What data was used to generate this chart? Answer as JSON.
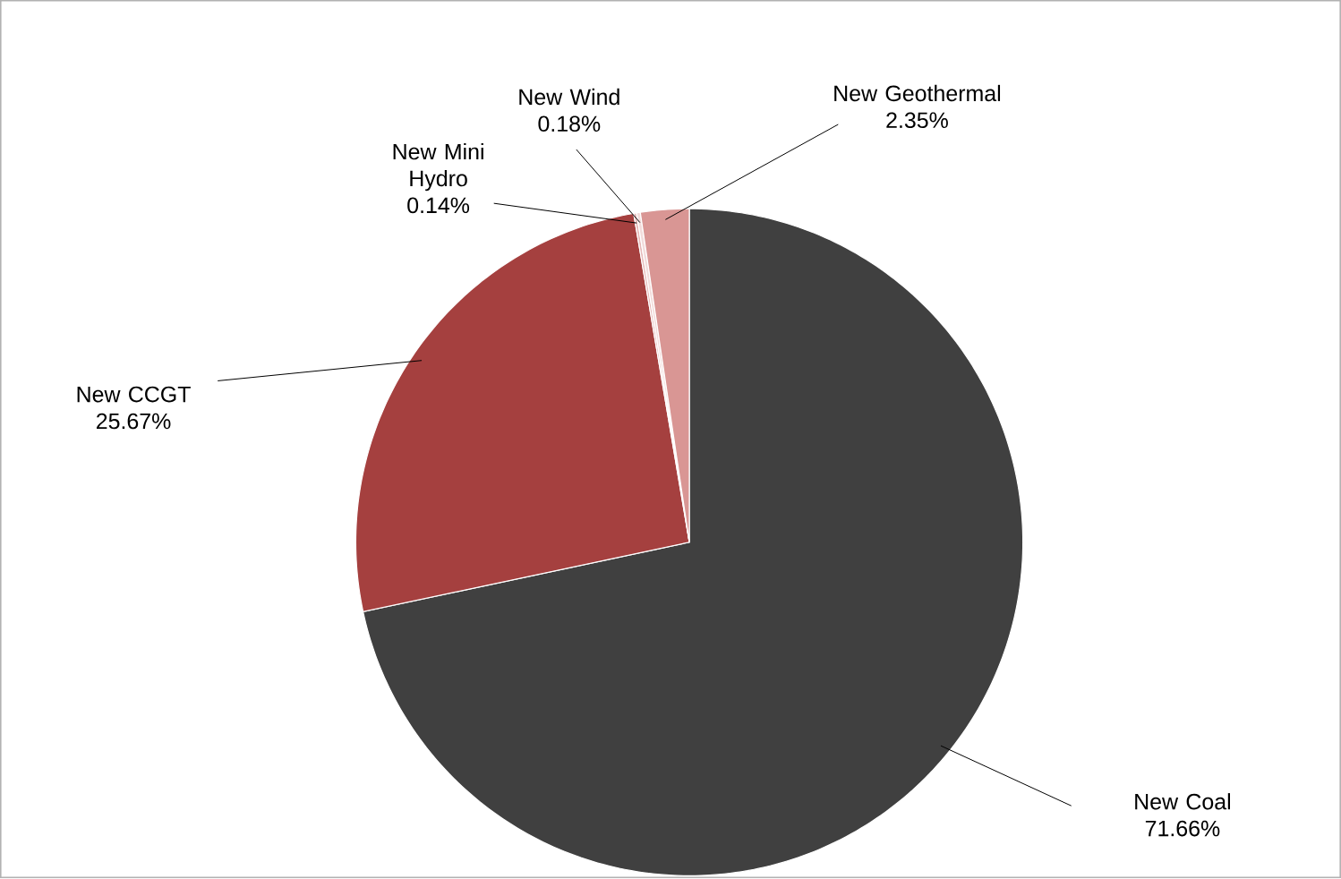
{
  "chart_data": {
    "type": "pie",
    "categories": [
      "New Coal",
      "New CCGT",
      "New Mini Hydro",
      "New Wind",
      "New Geothermal"
    ],
    "values": [
      71.66,
      25.67,
      0.14,
      0.18,
      2.35
    ],
    "value_labels": [
      "71.66%",
      "25.67%",
      "0.14%",
      "0.18%",
      "2.35%"
    ],
    "colors": [
      "#404040",
      "#a5403f",
      "#e6b9b8",
      "#f2dcdb",
      "#d99694"
    ],
    "data_labels": true
  }
}
